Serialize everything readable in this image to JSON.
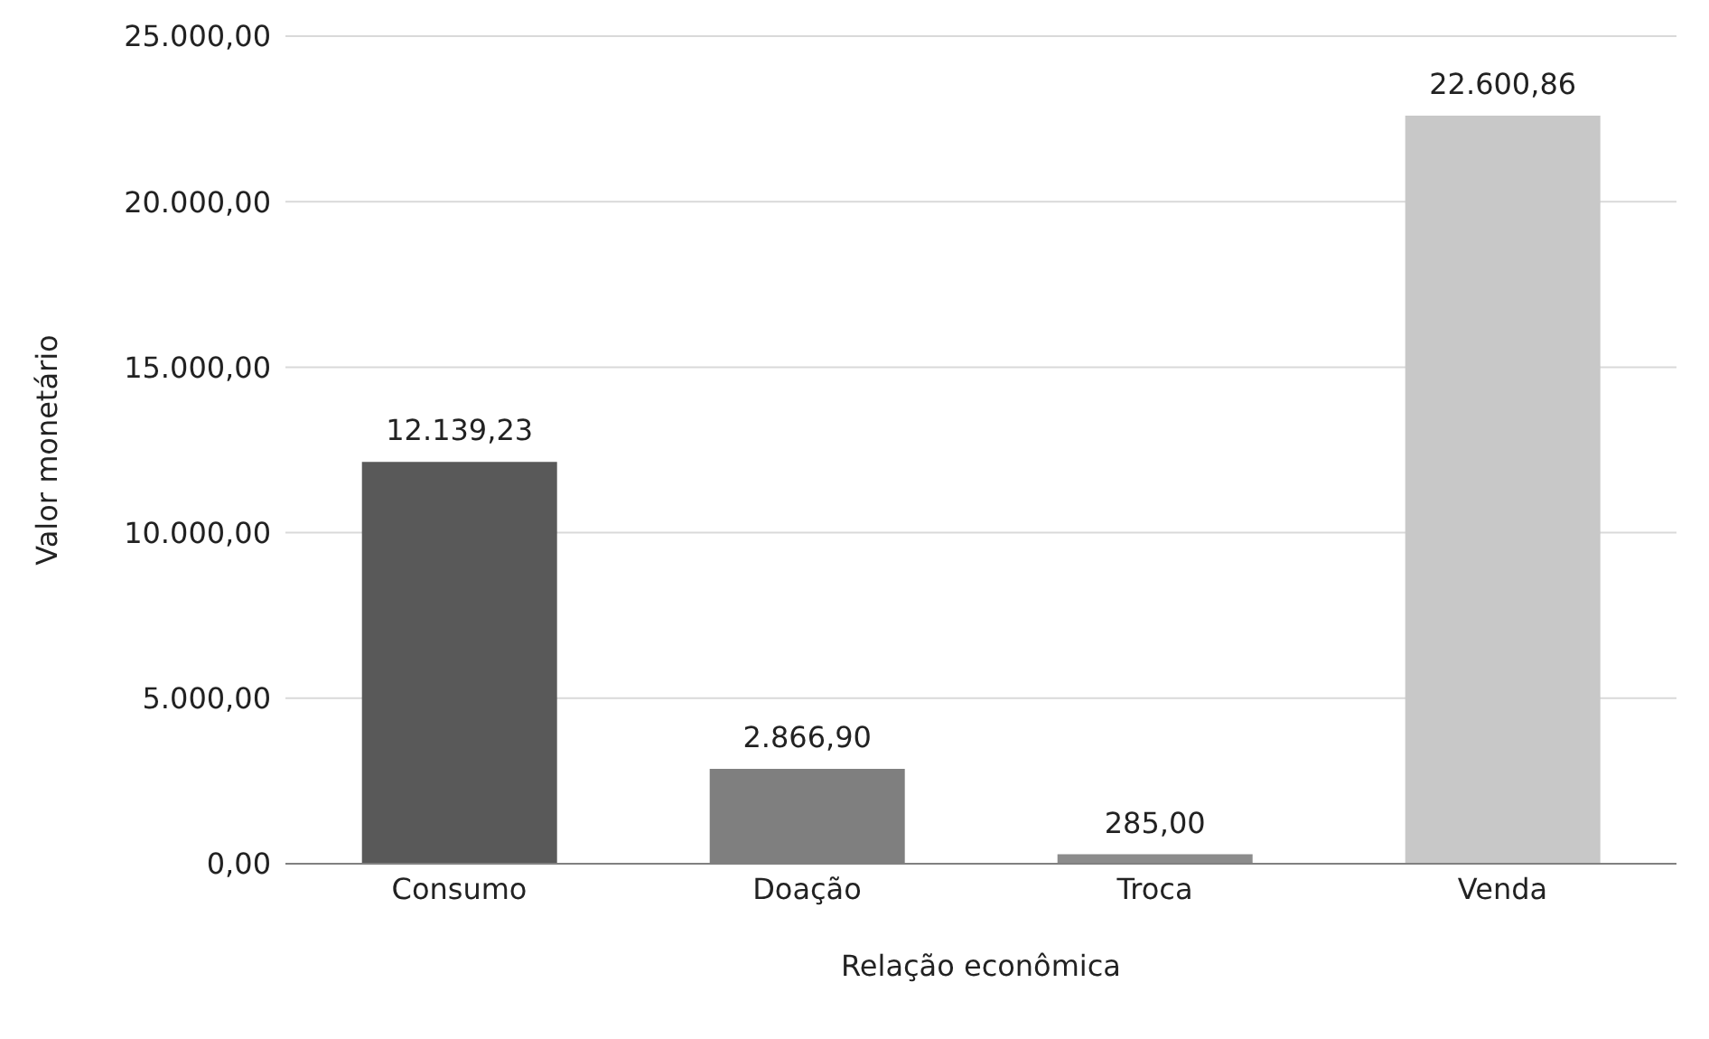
{
  "chart_data": {
    "type": "bar",
    "xlabel": "Relação econômica",
    "ylabel": "Valor monetário",
    "categories": [
      "Consumo",
      "Doação",
      "Troca",
      "Venda"
    ],
    "values": [
      12139.23,
      2866.9,
      285,
      22600.86
    ],
    "colors": [
      "#595959",
      "#7f7f7f",
      "#8c8c8c",
      "#c8c8c8"
    ],
    "value_labels": [
      "12.139,23",
      "2.866,90",
      "285,00",
      "22.600,86"
    ],
    "ylim": [
      0,
      25000
    ],
    "yticks": [
      {
        "value": 0,
        "label": "0,00"
      },
      {
        "value": 5000,
        "label": "5.000,00"
      },
      {
        "value": 10000,
        "label": "10.000,00"
      },
      {
        "value": 15000,
        "label": "15.000,00"
      },
      {
        "value": 20000,
        "label": "20.000,00"
      },
      {
        "value": 25000,
        "label": "25.000,00"
      }
    ],
    "grid": "y",
    "legend": false
  }
}
